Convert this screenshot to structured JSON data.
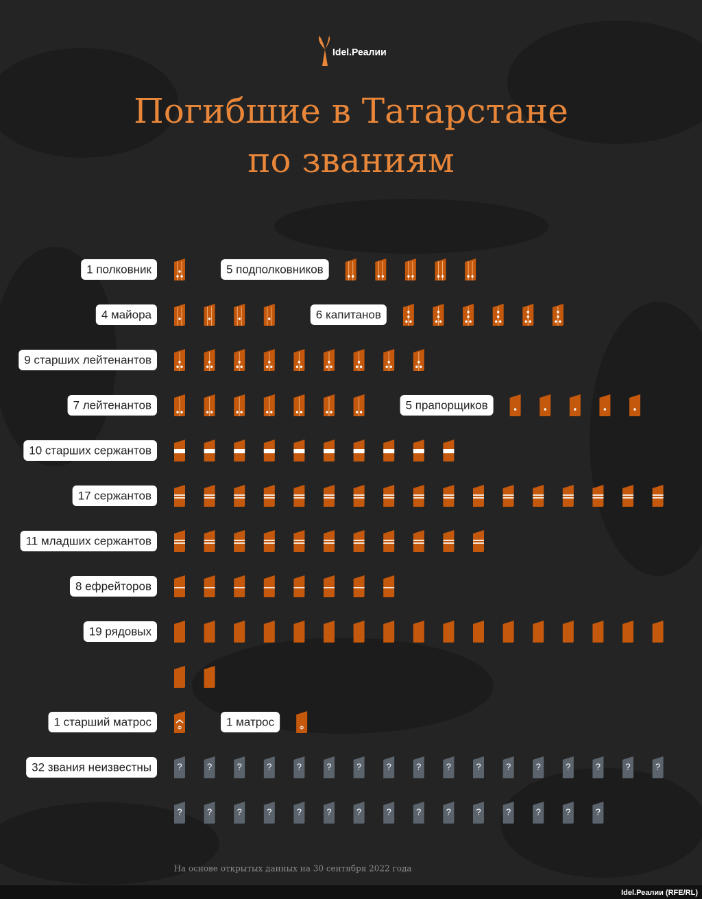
{
  "logo": "Idel.Реалии",
  "chart_data": {
    "type": "pictogram",
    "title": [
      "Погибшие в Татарстане",
      "по званиям"
    ],
    "categories": [
      "1 полковник",
      "5 подполковников",
      "4 майора",
      "6 капитанов",
      "9 старших лейтенантов",
      "7 лейтенантов",
      "5 прапорщиков",
      "10 старших сержантов",
      "17 сержантов",
      "11 младших сержантов",
      "8 ефрейторов",
      "19 рядовых",
      "1 старший матрос",
      "1 матрос",
      "32 звания неизвестны"
    ],
    "values": [
      1,
      5,
      4,
      6,
      9,
      7,
      5,
      10,
      17,
      11,
      8,
      19,
      1,
      1,
      32
    ],
    "colors": [
      "#c4580c",
      "#c4580c",
      "#c4580c",
      "#c4580c",
      "#c4580c",
      "#c4580c",
      "#c4580c",
      "#c4580c",
      "#c4580c",
      "#c4580c",
      "#c4580c",
      "#c4580c",
      "#c4580c",
      "#c4580c",
      "#5b646c"
    ],
    "note": "На основе открытых данных на 30 сентября 2022 года"
  },
  "credit": "Idel.Реалии (RFE/RL)"
}
